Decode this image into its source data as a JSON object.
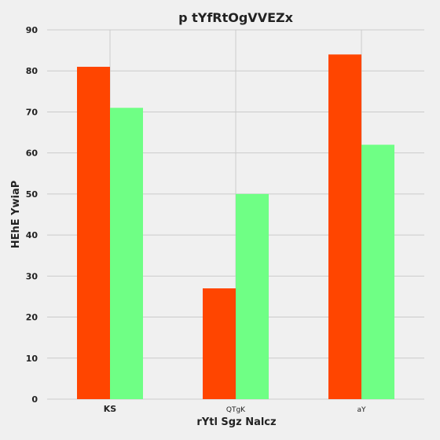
{
  "chart_data": {
    "type": "bar",
    "title": "p tYfRtOgVVEZx",
    "xlabel": "rYtl Sgz Nalcz",
    "ylabel": "HEhE YwiaP",
    "categories": [
      "KS",
      "QTgK",
      "aY"
    ],
    "series": [
      {
        "values": [
          81,
          27,
          84
        ],
        "color": "#ff4500"
      },
      {
        "values": [
          71,
          50,
          62
        ],
        "color": "#6fff85"
      }
    ],
    "ylim": [
      0,
      90
    ],
    "yticks": [
      "0",
      "10",
      "20",
      "30",
      "40",
      "50",
      "60",
      "70",
      "80",
      "90"
    ],
    "grid": true
  }
}
